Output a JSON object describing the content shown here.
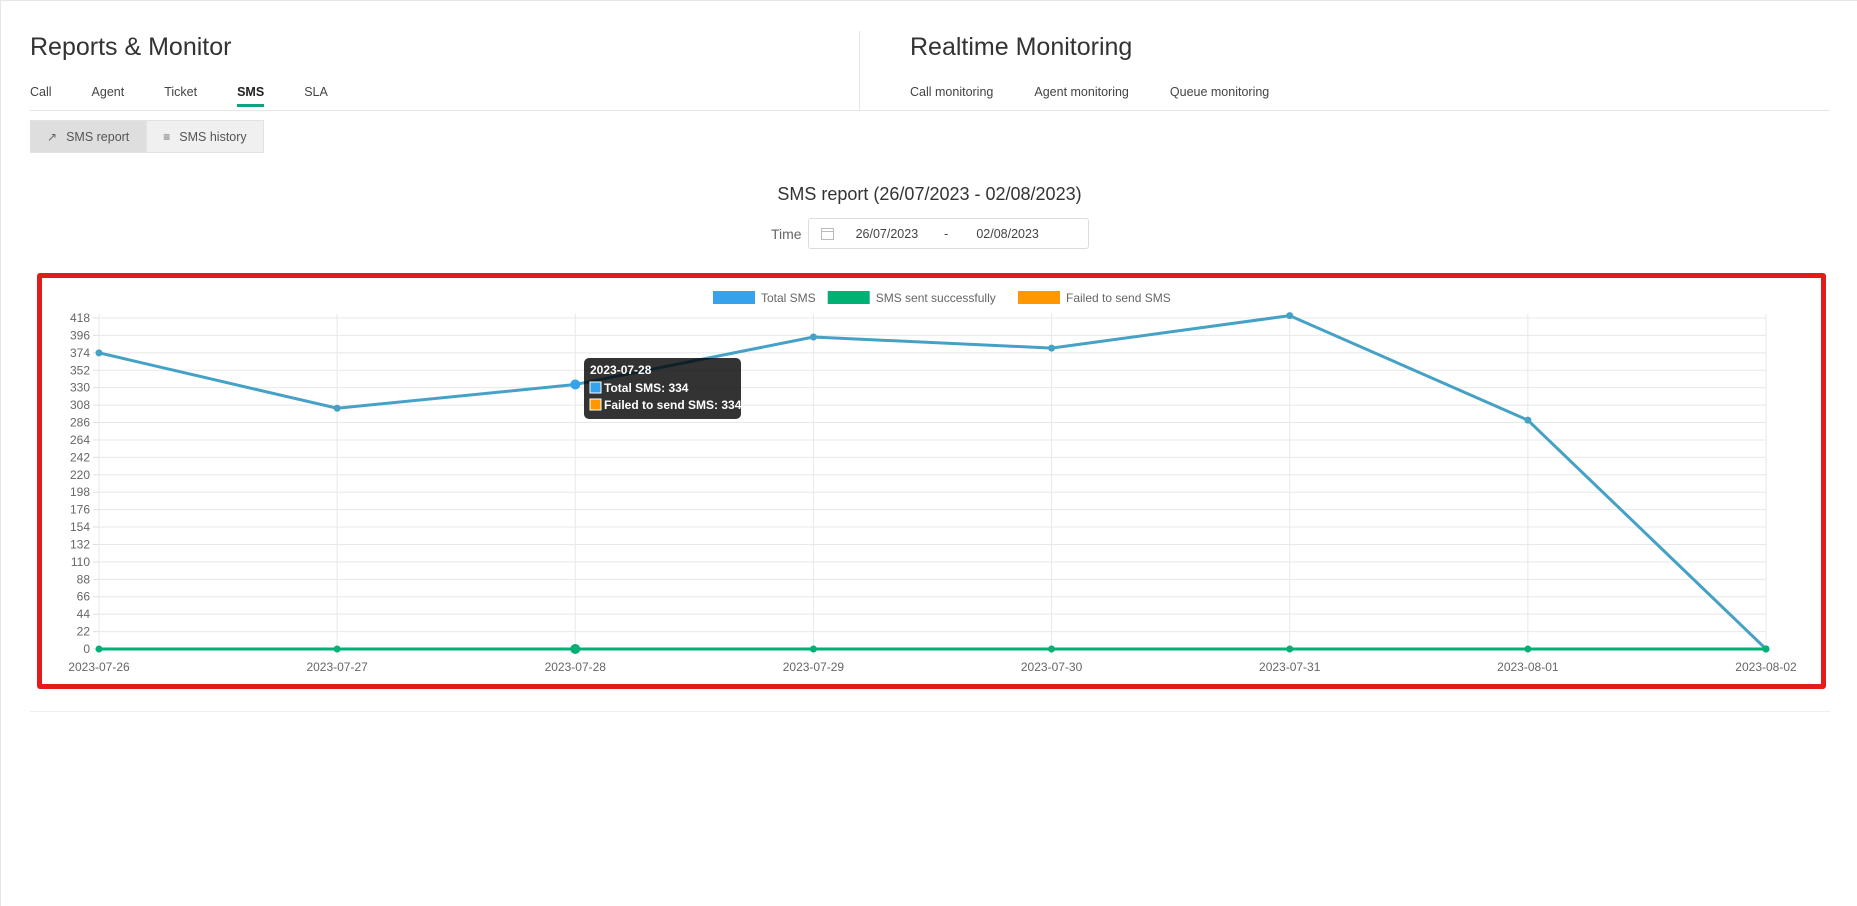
{
  "reports": {
    "title": "Reports & Monitor",
    "tabs": [
      {
        "label": "Call"
      },
      {
        "label": "Agent"
      },
      {
        "label": "Ticket"
      },
      {
        "label": "SMS"
      },
      {
        "label": "SLA"
      }
    ],
    "active_tab": "SMS"
  },
  "realtime": {
    "title": "Realtime Monitoring",
    "tabs": [
      {
        "label": "Call monitoring"
      },
      {
        "label": "Agent monitoring"
      },
      {
        "label": "Queue monitoring"
      }
    ]
  },
  "subtabs": {
    "report_label": "SMS report",
    "history_label": "SMS history",
    "active": "SMS report"
  },
  "report": {
    "title": "SMS report (26/07/2023 - 02/08/2023)",
    "time_label": "Time",
    "date_from": "26/07/2023",
    "date_sep": "-",
    "date_to": "02/08/2023"
  },
  "colors": {
    "accent": "#10a37f",
    "highlight_border": "#e31b1b",
    "total_sms": "#36a2eb",
    "total_sms_line": "#45a1c5",
    "sent_success": "#00b173",
    "failed": "#ff9800"
  },
  "chart_data": {
    "type": "line",
    "x": [
      "2023-07-26",
      "2023-07-27",
      "2023-07-28",
      "2023-07-29",
      "2023-07-30",
      "2023-07-31",
      "2023-08-01",
      "2023-08-02"
    ],
    "yticks": [
      0,
      22,
      44,
      66,
      88,
      110,
      132,
      154,
      176,
      198,
      220,
      242,
      264,
      286,
      308,
      330,
      352,
      374,
      396,
      418
    ],
    "ylim": [
      0,
      418
    ],
    "grid": true,
    "legend_position": "top-center",
    "series": [
      {
        "name": "Total SMS",
        "values": [
          374,
          304,
          334,
          394,
          380,
          421,
          289,
          0
        ]
      },
      {
        "name": "SMS sent successfully",
        "values": [
          0,
          0,
          0,
          0,
          0,
          0,
          0,
          0
        ]
      },
      {
        "name": "Failed to send SMS",
        "values": [
          374,
          304,
          334,
          394,
          380,
          421,
          289,
          0
        ]
      }
    ],
    "tooltip": {
      "title": "2023-07-28",
      "lines": [
        "Total SMS: 334",
        "Failed to send SMS: 334"
      ]
    }
  }
}
